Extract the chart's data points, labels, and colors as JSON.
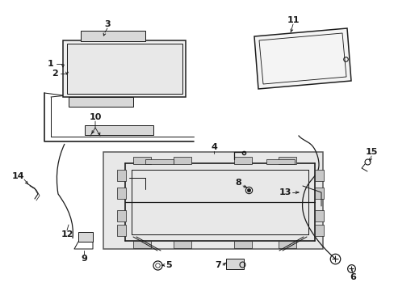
{
  "bg_color": "#ffffff",
  "fig_width": 4.89,
  "fig_height": 3.6,
  "dpi": 100,
  "lc": "#1a1a1a",
  "lw": 0.9,
  "fs": 8.0,
  "shade": "#d8d8d8",
  "shade2": "#c8c8c8"
}
